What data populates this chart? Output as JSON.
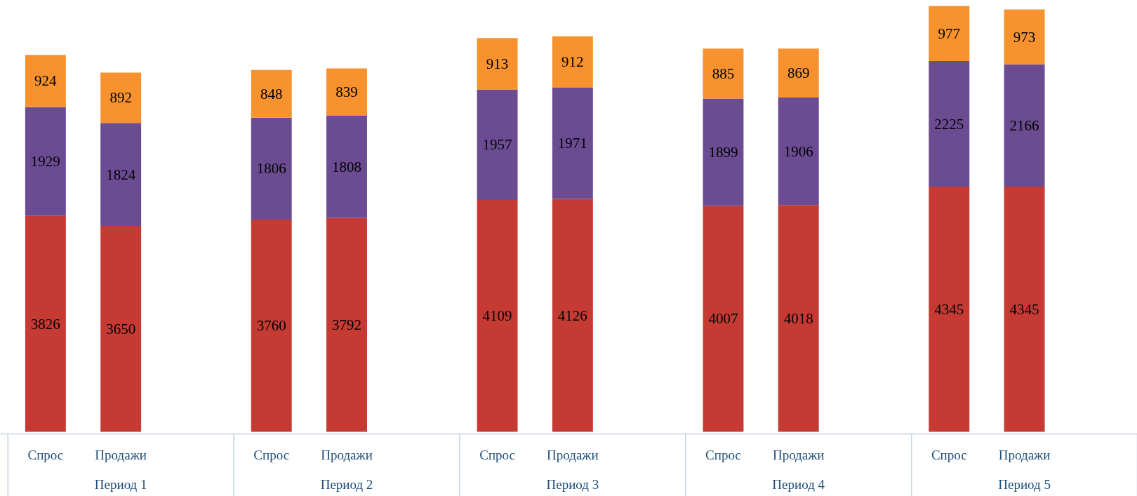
{
  "chart_data": {
    "type": "bar",
    "stacked": true,
    "data_labels": true,
    "categories": [
      "Спрос",
      "Продажи",
      "Спрос",
      "Продажи",
      "Спрос",
      "Продажи",
      "Спрос",
      "Продажи",
      "Спрос",
      "Продажи"
    ],
    "annotations": [
      "Период 1",
      "Период 2",
      "Период 3",
      "Период 4",
      "Период 5"
    ],
    "series": [
      {
        "color": "#c53b34",
        "values": [
          3826,
          3650,
          3760,
          3792,
          4109,
          4126,
          4007,
          4018,
          4345,
          4345
        ]
      },
      {
        "color": "#6b4c92",
        "values": [
          1929,
          1824,
          1806,
          1808,
          1957,
          1971,
          1899,
          1906,
          2225,
          2166
        ]
      },
      {
        "color": "#f7922e",
        "values": [
          924,
          892,
          848,
          839,
          913,
          912,
          885,
          869,
          977,
          973
        ]
      }
    ]
  }
}
